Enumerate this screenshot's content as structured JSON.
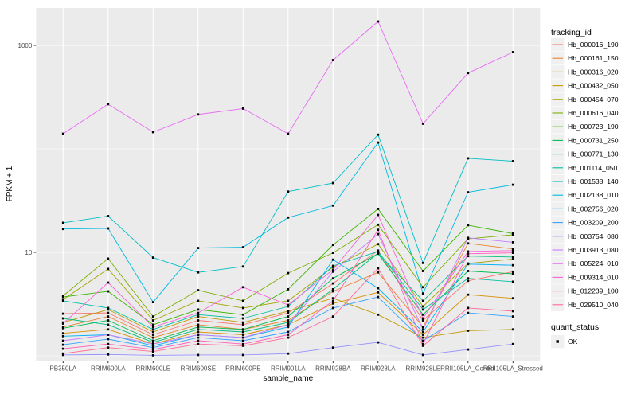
{
  "figure": {
    "xlabel": "sample_name",
    "ylabel": "FPKM + 1",
    "legend_color_title": "tracking_id",
    "legend_shape_title": "quant_status",
    "legend_shape_item": "OK"
  },
  "chart_data": {
    "type": "line",
    "x_type": "categorical",
    "y_scale": "log10",
    "xlabel": "sample_name",
    "ylabel": "FPKM + 1",
    "title": "",
    "grid": true,
    "legend_position": "right",
    "panel_background": "#EBEBEB",
    "gridline_color": "#FFFFFF",
    "legend_key_background": "#F0F0F0",
    "axis_text_color": "#4D4D4D",
    "tick_mark_color": "#333333",
    "point_marker": {
      "shape": "square",
      "color": "#000000",
      "label": "OK",
      "size": 2.8
    },
    "y_tick_values": [
      1000,
      10
    ],
    "y_tick_labels": [
      "1000",
      "10"
    ],
    "y_minor_gridlines": [
      100,
      1
    ],
    "ylim": [
      0.9,
      2300
    ],
    "categories": [
      "PB350LA",
      "RRIM600LA",
      "RRIM600LE",
      "RRIM600SE",
      "RRIM600PE",
      "RRIM901LA",
      "RRIM928BA",
      "RRIM928LA",
      "RRIM928LE",
      "RRII105LA_Control",
      "RRII105LA_Stressed"
    ],
    "series": [
      {
        "name": "Hb_000016_190",
        "color": "#F8766D",
        "values": [
          2.55,
          2.6,
          1.6,
          2.2,
          2.0,
          2.6,
          5.0,
          10.4,
          2.2,
          5.3,
          6.5
        ]
      },
      {
        "name": "Hb_000161_150",
        "color": "#EA8331",
        "values": [
          1.9,
          2.4,
          1.5,
          2.0,
          1.8,
          2.2,
          4.2,
          6.4,
          1.9,
          12.2,
          10.8
        ]
      },
      {
        "name": "Hb_000316_020",
        "color": "#D89000",
        "values": [
          1.65,
          1.8,
          1.3,
          1.7,
          1.6,
          2.0,
          3.2,
          4.1,
          1.6,
          3.9,
          3.6
        ]
      },
      {
        "name": "Hb_000432_050",
        "color": "#C09B00",
        "values": [
          2.1,
          2.8,
          1.7,
          2.4,
          2.1,
          2.7,
          3.6,
          2.5,
          1.5,
          1.75,
          1.8
        ]
      },
      {
        "name": "Hb_000454_070",
        "color": "#A3A500",
        "values": [
          3.5,
          6.9,
          2.2,
          3.4,
          2.9,
          3.4,
          7.2,
          12.0,
          3.0,
          7.8,
          8.6
        ]
      },
      {
        "name": "Hb_000616_040",
        "color": "#7CAE00",
        "values": [
          3.8,
          8.7,
          2.4,
          4.3,
          3.4,
          6.3,
          9.9,
          18.5,
          4.6,
          13.5,
          14.8
        ]
      },
      {
        "name": "Hb_000723_190",
        "color": "#39B600",
        "values": [
          3.7,
          4.2,
          2.0,
          2.8,
          2.5,
          4.4,
          11.8,
          26.3,
          6.6,
          18.3,
          15.2
        ]
      },
      {
        "name": "Hb_000731_250",
        "color": "#00BB4E",
        "values": [
          1.85,
          2.2,
          1.4,
          1.9,
          1.8,
          2.4,
          5.6,
          9.7,
          2.5,
          6.6,
          6.2
        ]
      },
      {
        "name": "Hb_000771_130",
        "color": "#00BF7D",
        "values": [
          2.3,
          2.0,
          1.35,
          1.8,
          1.7,
          2.1,
          4.4,
          9.8,
          3.4,
          9.2,
          9.0
        ]
      },
      {
        "name": "Hb_001114_050",
        "color": "#00C1A3",
        "values": [
          3.4,
          2.9,
          1.8,
          2.5,
          2.3,
          3.0,
          7.4,
          10.2,
          2.8,
          5.6,
          5.2
        ]
      },
      {
        "name": "Hb_001538_140",
        "color": "#00BFC4",
        "values": [
          19.3,
          22.4,
          8.9,
          6.4,
          7.3,
          38.6,
          46.7,
          137,
          7.9,
          81,
          76
        ]
      },
      {
        "name": "Hb_002138_010",
        "color": "#00BAE0",
        "values": [
          16.8,
          17.0,
          3.3,
          11.0,
          11.2,
          21.7,
          28.3,
          115,
          4.0,
          38,
          45
        ]
      },
      {
        "name": "Hb_002756_020",
        "color": "#00B0F6",
        "values": [
          1.55,
          1.6,
          1.25,
          1.6,
          1.5,
          1.9,
          8.5,
          4.5,
          1.7,
          7.7,
          7.5
        ]
      },
      {
        "name": "Hb_003209_200",
        "color": "#35A2FF",
        "values": [
          1.28,
          1.45,
          1.2,
          1.5,
          1.4,
          1.7,
          2.9,
          3.7,
          1.4,
          2.6,
          2.4
        ]
      },
      {
        "name": "Hb_003754_080",
        "color": "#9590FF",
        "values": [
          1.02,
          1.03,
          1.01,
          1.02,
          1.02,
          1.05,
          1.2,
          1.35,
          1.02,
          1.15,
          1.3
        ]
      },
      {
        "name": "Hb_003913_080",
        "color": "#C77CFF",
        "values": [
          1.4,
          1.6,
          1.3,
          1.6,
          1.5,
          2.0,
          6.5,
          15.0,
          1.8,
          13.8,
          12.5
        ]
      },
      {
        "name": "Hb_005224_010",
        "color": "#E76BF3",
        "values": [
          140,
          270,
          145,
          215,
          245,
          140,
          720,
          1700,
          175,
          540,
          860
        ]
      },
      {
        "name": "Hb_009314_010",
        "color": "#FA62DB",
        "values": [
          2.05,
          5.1,
          1.9,
          2.6,
          4.6,
          3.1,
          6.8,
          23.0,
          2.3,
          10.2,
          10.4
        ]
      },
      {
        "name": "Hb_012239_100",
        "color": "#FF62BC",
        "values": [
          1.17,
          1.3,
          1.15,
          1.4,
          1.3,
          1.6,
          3.4,
          16.5,
          1.3,
          9.7,
          9.9
        ]
      },
      {
        "name": "Hb_029510_040",
        "color": "#FF6A98",
        "values": [
          1.05,
          1.2,
          1.1,
          1.3,
          1.25,
          1.5,
          2.4,
          7.0,
          1.25,
          2.9,
          2.7
        ]
      }
    ]
  }
}
